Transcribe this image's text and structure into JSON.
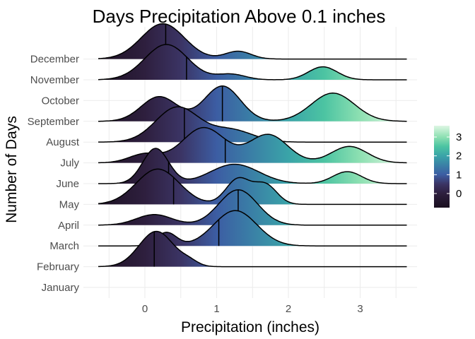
{
  "chart_data": {
    "type": "ridgeline",
    "title": "Days Precipitation Above 0.1 inches",
    "xlabel": "Precipitation (inches)",
    "ylabel": "Number of Days",
    "xlim": [
      -0.65,
      3.65
    ],
    "xticks": [
      0,
      1,
      2,
      3
    ],
    "grid": true,
    "fill": "gradient by precipitation value",
    "colorscale": {
      "range": [
        -0.75,
        3.6
      ],
      "ticks": [
        0,
        1,
        2,
        3
      ],
      "stops": [
        {
          "v": -0.75,
          "color": "#1a0f1f"
        },
        {
          "v": 0,
          "color": "#2e1f3e"
        },
        {
          "v": 0.5,
          "color": "#3b3464"
        },
        {
          "v": 1,
          "color": "#3c5da3"
        },
        {
          "v": 1.5,
          "color": "#3a80a6"
        },
        {
          "v": 2,
          "color": "#3aa4a8"
        },
        {
          "v": 2.5,
          "color": "#4cc4a2"
        },
        {
          "v": 3,
          "color": "#8ee0b2"
        },
        {
          "v": 3.6,
          "color": "#def6e3"
        }
      ]
    },
    "ridges": [
      {
        "month": "January",
        "median": null,
        "components": []
      },
      {
        "month": "February",
        "median": 0.13,
        "components": [
          [
            0.16,
            0.24,
            1.0
          ],
          [
            0.62,
            0.12,
            0.12
          ]
        ]
      },
      {
        "month": "March",
        "median": 1.03,
        "components": [
          [
            0.3,
            0.14,
            0.38
          ],
          [
            1.26,
            0.3,
            1.0
          ]
        ]
      },
      {
        "month": "April",
        "median": 1.3,
        "components": [
          [
            0.13,
            0.25,
            0.3
          ],
          [
            1.3,
            0.27,
            1.0
          ]
        ]
      },
      {
        "month": "May",
        "median": 0.4,
        "components": [
          [
            0.18,
            0.3,
            1.0
          ],
          [
            1.3,
            0.17,
            0.72
          ],
          [
            1.68,
            0.16,
            0.55
          ]
        ]
      },
      {
        "month": "June",
        "median": 0.33,
        "components": [
          [
            0.15,
            0.18,
            1.0
          ],
          [
            1.25,
            0.34,
            0.55
          ],
          [
            2.82,
            0.2,
            0.34
          ]
        ]
      },
      {
        "month": "July",
        "median": 1.12,
        "components": [
          [
            0.0,
            0.22,
            0.15
          ],
          [
            0.82,
            0.3,
            0.6
          ],
          [
            1.72,
            0.27,
            0.48
          ],
          [
            2.85,
            0.25,
            0.28
          ]
        ]
      },
      {
        "month": "August",
        "median": 0.55,
        "components": [
          [
            0.45,
            0.3,
            1.0
          ],
          [
            1.2,
            0.3,
            0.35
          ]
        ]
      },
      {
        "month": "September",
        "median": 1.08,
        "components": [
          [
            0.2,
            0.25,
            0.28
          ],
          [
            1.08,
            0.25,
            0.4
          ],
          [
            2.62,
            0.3,
            0.32
          ]
        ]
      },
      {
        "month": "October",
        "median": null,
        "components": []
      },
      {
        "month": "November",
        "median": 0.58,
        "components": [
          [
            0.3,
            0.3,
            0.95
          ],
          [
            1.2,
            0.2,
            0.15
          ],
          [
            2.48,
            0.2,
            0.35
          ]
        ]
      },
      {
        "month": "December",
        "median": 0.29,
        "components": [
          [
            0.25,
            0.3,
            1.0
          ],
          [
            1.3,
            0.18,
            0.22
          ]
        ]
      }
    ]
  }
}
